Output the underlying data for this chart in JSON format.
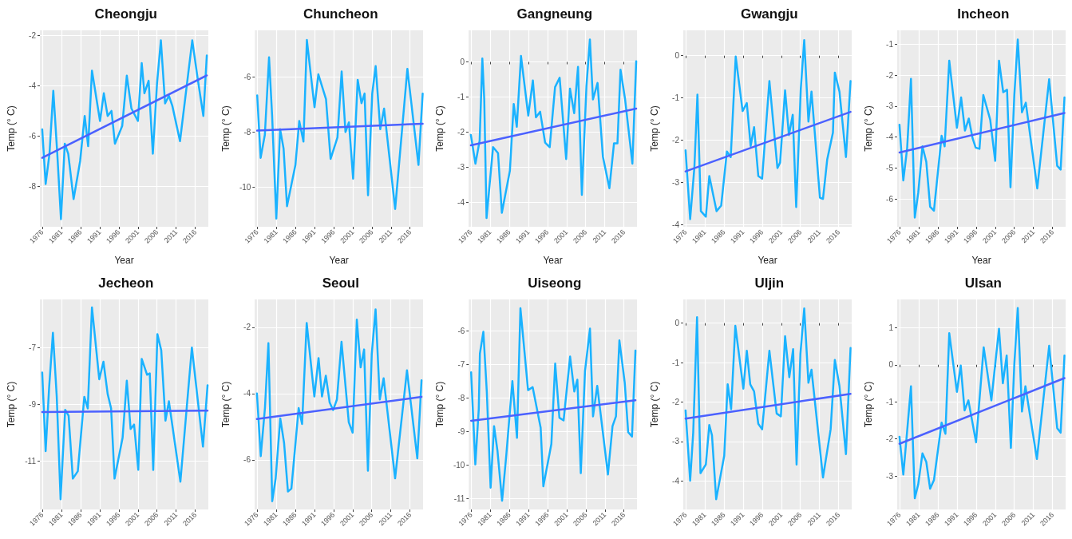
{
  "chart_data": [
    {
      "type": "line",
      "title": "Cheongju",
      "xlabel": "Year",
      "ylabel": "Temp (° C)",
      "xlim": [
        1975.4,
        2019.4
      ],
      "xticks": [
        1976,
        1981,
        1986,
        1991,
        1996,
        2001,
        2006,
        2011,
        2016
      ],
      "ylim": [
        -9.6,
        -1.8
      ],
      "yticks": [
        -8,
        -6,
        -4,
        -2
      ],
      "grid": true,
      "marker": "none",
      "line_style": "solid",
      "series": [
        {
          "color": "#1ab2ff",
          "x": [
            1976,
            1976.9,
            1977.9,
            1978.9,
            1979.9,
            1980.9,
            1981.9,
            1982.8,
            1984.2,
            1985.9,
            1987.1,
            1988,
            1989,
            1991.1,
            1992.1,
            1993.1,
            1994.1,
            1995,
            1996.9,
            1998.1,
            1999.3,
            2001,
            2002,
            2002.7,
            2003.8,
            2004.9,
            2006,
            2007,
            2008.1,
            2009.1,
            2010,
            2012,
            2015.2,
            2016.6,
            2018.1,
            2019
          ],
          "values": [
            -5.73,
            -7.9,
            -6.7,
            -4.2,
            -6.6,
            -9.3,
            -6.3,
            -6.7,
            -8.5,
            -7.0,
            -5.2,
            -6.4,
            -3.4,
            -5.4,
            -4.3,
            -5.2,
            -5.0,
            -6.3,
            -5.6,
            -3.6,
            -4.9,
            -5.4,
            -3.1,
            -4.3,
            -3.8,
            -6.7,
            -3.9,
            -2.2,
            -4.7,
            -4.4,
            -4.8,
            -6.2,
            -2.2,
            -3.7,
            -5.2,
            -2.8
          ]
        },
        {
          "type": "line",
          "color": "#4b61ff",
          "x": [
            1976,
            2019
          ],
          "values": [
            -6.86,
            -3.59
          ]
        }
      ]
    },
    {
      "type": "line",
      "title": "Chuncheon",
      "xlabel": "Year",
      "ylabel": "Temp (° C)",
      "xlim": [
        1975.4,
        2019.4
      ],
      "xticks": [
        1976,
        1981,
        1986,
        1991,
        1996,
        2001,
        2006,
        2011,
        2016
      ],
      "ylim": [
        -11.45,
        -4.3
      ],
      "yticks": [
        -10,
        -8,
        -6
      ],
      "grid": true,
      "marker": "none",
      "line_style": "solid",
      "series": [
        {
          "color": "#1ab2ff",
          "x": [
            1976,
            1976.9,
            1978,
            1979.1,
            1979.9,
            1981,
            1982,
            1982.9,
            1983.8,
            1986,
            1987,
            1988.1,
            1989,
            1991,
            1992,
            1994,
            1995.2,
            1997,
            1998.1,
            1999.1,
            2000,
            2001.1,
            2002.3,
            2003.3,
            2004.1,
            2005,
            2006.1,
            2007,
            2008.2,
            2009.2,
            2012.1,
            2015.3,
            2018.2,
            2019.3
          ],
          "values": [
            -6.67,
            -8.94,
            -8.1,
            -5.28,
            -7.4,
            -11.15,
            -7.9,
            -8.6,
            -10.7,
            -9.2,
            -7.6,
            -8.35,
            -4.65,
            -7.1,
            -5.9,
            -6.8,
            -8.98,
            -8.2,
            -5.8,
            -8.0,
            -7.65,
            -9.7,
            -6.1,
            -6.95,
            -6.6,
            -10.3,
            -6.6,
            -5.6,
            -7.9,
            -7.15,
            -10.8,
            -5.7,
            -9.2,
            -6.6
          ]
        },
        {
          "type": "line",
          "color": "#4b61ff",
          "x": [
            1976,
            2019.3
          ],
          "values": [
            -7.95,
            -7.7
          ]
        }
      ]
    },
    {
      "type": "line",
      "title": "Gangneung",
      "xlabel": "Year",
      "ylabel": "Temp (° C)",
      "xlim": [
        1975.4,
        2019.4
      ],
      "xticks": [
        1976,
        1981,
        1986,
        1991,
        1996,
        2001,
        2006,
        2011,
        2016
      ],
      "ylim": [
        -4.7,
        0.9
      ],
      "yticks": [
        -4,
        -3,
        -2,
        -1,
        0
      ],
      "grid": true,
      "marker": "none",
      "line_style": "solid",
      "series": [
        {
          "color": "#1ab2ff",
          "x": [
            1976,
            1977.2,
            1978.3,
            1979,
            1979.5,
            1980.1,
            1981.8,
            1983.1,
            1984.1,
            1986.2,
            1987.2,
            1988,
            1989.1,
            1991,
            1992.2,
            1993,
            1994.1,
            1995.4,
            1996.6,
            1998,
            1999.2,
            2000.9,
            2001.9,
            2003,
            2004,
            2005,
            2006.2,
            2007.1,
            2007.9,
            2009.1,
            2010.5,
            2012.2,
            2013.4,
            2014.3,
            2015.1,
            2016.3,
            2018.2,
            2019.2
          ],
          "values": [
            -2.08,
            -2.9,
            -2.24,
            0.1,
            -1.06,
            -4.45,
            -2.43,
            -2.6,
            -4.3,
            -3.1,
            -1.2,
            -1.85,
            0.17,
            -1.53,
            -0.53,
            -1.58,
            -1.42,
            -2.3,
            -2.43,
            -0.72,
            -0.45,
            -2.77,
            -0.76,
            -1.46,
            -0.14,
            -3.79,
            -0.69,
            0.64,
            -1.07,
            -0.6,
            -2.7,
            -3.6,
            -2.32,
            -2.32,
            -0.22,
            -1.07,
            -2.9,
            0.02
          ]
        },
        {
          "type": "line",
          "color": "#4b61ff",
          "x": [
            1976,
            2019.2
          ],
          "values": [
            -2.38,
            -1.33
          ]
        }
      ]
    },
    {
      "type": "line",
      "title": "Gwangju",
      "xlabel": "Year",
      "ylabel": "Temp (° C)",
      "xlim": [
        1975.4,
        2019.4
      ],
      "xticks": [
        1976,
        1981,
        1986,
        1991,
        1996,
        2001,
        2006,
        2011,
        2016
      ],
      "ylim": [
        -4.05,
        0.6
      ],
      "yticks": [
        -4,
        -3,
        -2,
        -1,
        0
      ],
      "grid": true,
      "marker": "none",
      "line_style": "solid",
      "series": [
        {
          "color": "#1ab2ff",
          "x": [
            1976,
            1977.2,
            1978.3,
            1979.1,
            1980,
            1981.3,
            1982.2,
            1984.1,
            1985.3,
            1986.8,
            1987.8,
            1989.1,
            1990.9,
            1992,
            1993,
            1993.9,
            1995,
            1996,
            1997.9,
            2000,
            2000.7,
            2002,
            2003,
            2004,
            2004.9,
            2006.1,
            2007,
            2008.1,
            2008.9,
            2011.1,
            2011.9,
            2013,
            2014.5,
            2015,
            2016.2,
            2017.9,
            2019.1
          ],
          "values": [
            -2.24,
            -3.87,
            -2.65,
            -0.92,
            -3.68,
            -3.81,
            -2.85,
            -3.68,
            -3.55,
            -2.27,
            -2.4,
            -0.02,
            -1.31,
            -1.12,
            -2.14,
            -1.69,
            -2.85,
            -2.91,
            -0.6,
            -2.66,
            -2.53,
            -0.82,
            -1.88,
            -1.4,
            -3.58,
            -0.79,
            0.37,
            -1.56,
            -0.85,
            -3.36,
            -3.39,
            -2.46,
            -1.82,
            -0.4,
            -0.85,
            -2.4,
            -0.6
          ]
        },
        {
          "type": "line",
          "color": "#4b61ff",
          "x": [
            1976,
            2019.1
          ],
          "values": [
            -2.74,
            -1.33
          ]
        }
      ]
    },
    {
      "type": "line",
      "title": "Incheon",
      "xlabel": "Year",
      "ylabel": "Temp (° C)",
      "xlim": [
        1975.4,
        2019.4
      ],
      "xticks": [
        1976,
        1981,
        1986,
        1991,
        1996,
        2001,
        2006,
        2011,
        2016
      ],
      "ylim": [
        -6.9,
        -0.55
      ],
      "yticks": [
        -6,
        -5,
        -4,
        -3,
        -2,
        -1
      ],
      "grid": true,
      "marker": "none",
      "line_style": "solid",
      "series": [
        {
          "color": "#1ab2ff",
          "x": [
            1976,
            1977,
            1978,
            1979,
            1980,
            1980.9,
            1982,
            1983,
            1984,
            1985,
            1987,
            1987.8,
            1989,
            1991,
            1992.1,
            1993.1,
            1994.1,
            1995.1,
            1995.9,
            1996.9,
            1997.9,
            1999.7,
            2001,
            2002,
            2003.1,
            2004.1,
            2005,
            2006,
            2006.9,
            2008,
            2009,
            2012,
            2015.1,
            2017.2,
            2018.1,
            2019.1
          ],
          "values": [
            -3.6,
            -5.4,
            -4.36,
            -2.12,
            -6.6,
            -5.8,
            -4.3,
            -4.8,
            -6.25,
            -6.38,
            -3.96,
            -4.3,
            -1.53,
            -3.7,
            -2.72,
            -3.79,
            -3.4,
            -4.04,
            -4.34,
            -4.38,
            -2.64,
            -3.44,
            -4.77,
            -1.53,
            -2.55,
            -2.47,
            -5.62,
            -2.64,
            -0.85,
            -3.2,
            -2.89,
            -5.66,
            -2.13,
            -4.93,
            -5.05,
            -2.72
          ]
        },
        {
          "type": "line",
          "color": "#4b61ff",
          "x": [
            1976,
            2019.1
          ],
          "values": [
            -4.5,
            -3.22
          ]
        }
      ]
    },
    {
      "type": "line",
      "title": "Jecheon",
      "ylabel": "Temp (° C)",
      "xlim": [
        1975.4,
        2019.4
      ],
      "xticks": [
        1976,
        1981,
        1986,
        1991,
        1996,
        2001,
        2006,
        2011,
        2016
      ],
      "ylim": [
        -12.72,
        -5.3
      ],
      "yticks": [
        -11,
        -9,
        -7
      ],
      "grid": true,
      "marker": "none",
      "line_style": "solid",
      "series": [
        {
          "color": "#1ab2ff",
          "x": [
            1976,
            1976.9,
            1977.8,
            1978.8,
            1979.8,
            1980.8,
            1982,
            1982.9,
            1984,
            1985.3,
            1987,
            1987.9,
            1989,
            1990.9,
            1992,
            1993.1,
            1994,
            1994.9,
            1997,
            1998.1,
            1999.1,
            2000,
            2001.1,
            2002,
            2003.4,
            2004.1,
            2005,
            2006.1,
            2007.1,
            2008.2,
            2009.1,
            2012.1,
            2015.1,
            2018,
            2019.2
          ],
          "values": [
            -7.88,
            -10.66,
            -8.43,
            -6.48,
            -8.74,
            -12.36,
            -9.2,
            -9.41,
            -11.63,
            -11.37,
            -8.74,
            -9.15,
            -5.58,
            -8.12,
            -7.5,
            -8.64,
            -9.15,
            -11.63,
            -10.19,
            -8.17,
            -9.88,
            -9.72,
            -11.32,
            -7.4,
            -7.96,
            -7.91,
            -11.32,
            -6.53,
            -7.1,
            -9.58,
            -8.9,
            -11.74,
            -7.0,
            -10.5,
            -8.33
          ]
        },
        {
          "type": "line",
          "color": "#4b61ff",
          "x": [
            1976,
            2019.2
          ],
          "values": [
            -9.28,
            -9.23
          ]
        }
      ]
    },
    {
      "type": "line",
      "title": "Seoul",
      "ylabel": "Temp (° C)",
      "xlim": [
        1975.4,
        2019.4
      ],
      "xticks": [
        1976,
        1981,
        1986,
        1991,
        1996,
        2001,
        2006,
        2011,
        2016
      ],
      "ylim": [
        -7.5,
        -1.16
      ],
      "yticks": [
        -6,
        -4,
        -2
      ],
      "grid": true,
      "marker": "none",
      "line_style": "solid",
      "series": [
        {
          "color": "#1ab2ff",
          "x": [
            1976,
            1977,
            1978.1,
            1979,
            1980,
            1980.9,
            1982.1,
            1983.1,
            1984.1,
            1985,
            1986.9,
            1987.8,
            1989,
            1991,
            1992.1,
            1993,
            1994,
            1995,
            1995.9,
            1996.9,
            1998.1,
            2000,
            2001,
            2002.1,
            2003.1,
            2004,
            2005,
            2006,
            2007,
            2008.1,
            2009.1,
            2012.1,
            2015.2,
            2017.9,
            2019
          ],
          "values": [
            -4.0,
            -5.89,
            -4.43,
            -2.48,
            -7.25,
            -6.56,
            -4.75,
            -5.5,
            -6.96,
            -6.87,
            -4.44,
            -4.92,
            -1.87,
            -4.09,
            -2.93,
            -4.09,
            -3.46,
            -4.27,
            -4.5,
            -4.18,
            -2.44,
            -4.87,
            -5.18,
            -1.77,
            -3.21,
            -2.67,
            -6.33,
            -2.8,
            -1.46,
            -4.18,
            -3.54,
            -6.56,
            -3.3,
            -5.96,
            -3.6
          ]
        },
        {
          "type": "line",
          "color": "#4b61ff",
          "x": [
            1976,
            2019
          ],
          "values": [
            -4.77,
            -4.1
          ]
        }
      ]
    },
    {
      "type": "line",
      "title": "Uiseong",
      "ylabel": "Temp (° C)",
      "xlim": [
        1975.4,
        2019.4
      ],
      "xticks": [
        1976,
        1981,
        1986,
        1991,
        1996,
        2001,
        2006,
        2011,
        2016
      ],
      "ylim": [
        -11.32,
        -5.07
      ],
      "yticks": [
        -11,
        -10,
        -9,
        -8,
        -7,
        -6
      ],
      "grid": true,
      "marker": "none",
      "line_style": "solid",
      "series": [
        {
          "color": "#1ab2ff",
          "x": [
            1976,
            1977.1,
            1978,
            1978.3,
            1979.2,
            1980.1,
            1981.1,
            1982,
            1982.9,
            1984.1,
            1985.2,
            1986.8,
            1988,
            1988.9,
            1990.9,
            1992.1,
            1994.2,
            1994.9,
            1997,
            1998,
            1999.1,
            2000.2,
            2001.9,
            2003,
            2003.8,
            2004.7,
            2005.8,
            2007.1,
            2007.9,
            2009,
            2011.8,
            2013,
            2013.9,
            2014.8,
            2016.2,
            2017.1,
            2018.1,
            2019
          ],
          "values": [
            -7.24,
            -9.98,
            -8.33,
            -6.68,
            -6.03,
            -7.81,
            -10.67,
            -8.84,
            -9.58,
            -11.06,
            -9.71,
            -7.5,
            -9.19,
            -5.33,
            -7.77,
            -7.68,
            -8.89,
            -10.63,
            -9.37,
            -6.98,
            -8.59,
            -8.67,
            -6.77,
            -7.81,
            -7.46,
            -10.24,
            -7.2,
            -5.94,
            -8.55,
            -7.64,
            -10.28,
            -8.84,
            -8.55,
            -6.29,
            -7.55,
            -9.02,
            -9.15,
            -6.59
          ]
        },
        {
          "type": "line",
          "color": "#4b61ff",
          "x": [
            1976,
            2019
          ],
          "values": [
            -8.68,
            -8.07
          ]
        }
      ]
    },
    {
      "type": "line",
      "title": "Uljin",
      "ylabel": "Temp (° C)",
      "xlim": [
        1975.4,
        2019.4
      ],
      "xticks": [
        1976,
        1981,
        1986,
        1991,
        1996,
        2001,
        2006,
        2011,
        2016
      ],
      "ylim": [
        -4.72,
        0.6
      ],
      "yticks": [
        -4,
        -3,
        -2,
        -1,
        0
      ],
      "grid": true,
      "marker": "none",
      "line_style": "solid",
      "series": [
        {
          "color": "#1ab2ff",
          "x": [
            1976,
            1977.2,
            1978,
            1979,
            1979.9,
            1981.3,
            1982.2,
            1982.9,
            1984,
            1986.1,
            1987,
            1987.9,
            1989,
            1991.1,
            1992,
            1992.9,
            1993.9,
            1995,
            1996,
            1997.9,
            1999.8,
            2000.9,
            2002,
            2003.1,
            2004.1,
            2005,
            2006,
            2007,
            2008.1,
            2008.9,
            2011.9,
            2013.9,
            2015,
            2016.2,
            2017.9,
            2019.1
          ],
          "values": [
            -2.21,
            -3.99,
            -2.77,
            0.15,
            -3.8,
            -3.58,
            -2.58,
            -2.84,
            -4.46,
            -3.36,
            -1.55,
            -2.18,
            -0.07,
            -1.66,
            -0.7,
            -1.55,
            -1.73,
            -2.55,
            -2.69,
            -0.7,
            -2.29,
            -2.36,
            -0.33,
            -1.37,
            -0.66,
            -3.58,
            -0.78,
            0.37,
            -1.51,
            -1.18,
            -3.91,
            -2.69,
            -0.93,
            -1.59,
            -3.32,
            -0.63
          ]
        },
        {
          "type": "line",
          "color": "#4b61ff",
          "x": [
            1976,
            2019.1
          ],
          "values": [
            -2.42,
            -1.79
          ]
        }
      ]
    },
    {
      "type": "line",
      "title": "Ulsan",
      "ylabel": "Temp (° C)",
      "xlim": [
        1975.4,
        2019.4
      ],
      "xticks": [
        1976,
        1981,
        1986,
        1991,
        1996,
        2001,
        2006,
        2011,
        2016
      ],
      "ylim": [
        -3.9,
        1.76
      ],
      "yticks": [
        -3,
        -2,
        -1,
        0,
        1
      ],
      "grid": true,
      "marker": "none",
      "line_style": "solid",
      "series": [
        {
          "color": "#1ab2ff",
          "x": [
            1976,
            1977,
            1978,
            1979,
            1980,
            1980.9,
            1982,
            1983,
            1984,
            1985,
            1987,
            1988,
            1989,
            1991,
            1992,
            1993,
            1994,
            1996,
            1998,
            2000,
            2002,
            2003,
            2004,
            2005.1,
            2006,
            2006.9,
            2008,
            2008.9,
            2011.9,
            2015.1,
            2017.2,
            2018.1,
            2019.1
          ],
          "values": [
            -1.94,
            -2.96,
            -1.79,
            -0.58,
            -3.6,
            -3.22,
            -2.39,
            -2.62,
            -3.34,
            -3.11,
            -1.56,
            -1.86,
            0.85,
            -0.73,
            -0.02,
            -1.23,
            -0.96,
            -2.09,
            0.47,
            -0.96,
            0.97,
            -0.5,
            0.25,
            -2.24,
            0.02,
            1.53,
            -1.26,
            -0.58,
            -2.54,
            0.51,
            -1.71,
            -1.83,
            0.25
          ]
        },
        {
          "type": "line",
          "color": "#4b61ff",
          "x": [
            1976,
            2019.1
          ],
          "values": [
            -2.13,
            -0.36
          ]
        }
      ]
    }
  ]
}
